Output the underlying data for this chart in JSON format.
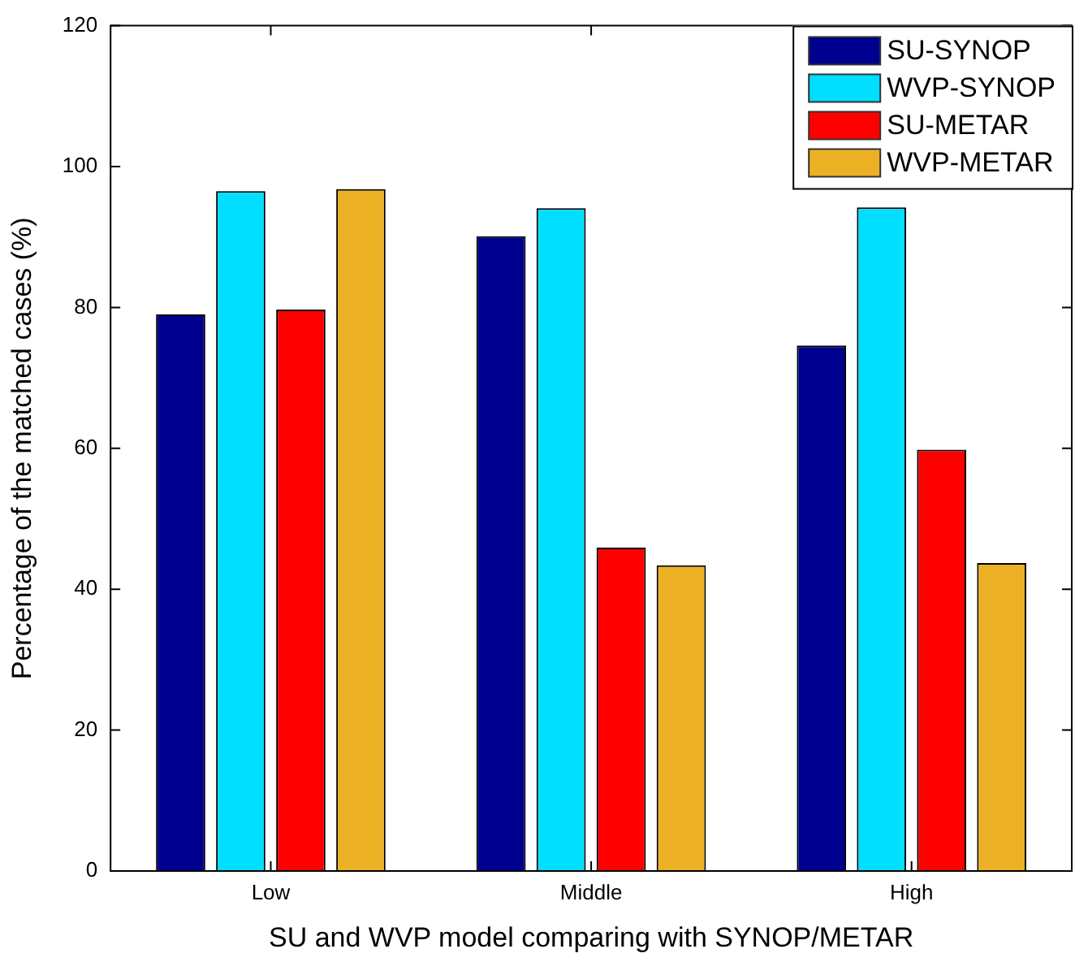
{
  "chart_data": {
    "type": "bar",
    "xlabel": "SU and WVP model comparing with SYNOP/METAR",
    "ylabel": "Percentage of the matched cases (%)",
    "categories": [
      "Low",
      "Middle",
      "High"
    ],
    "series": [
      {
        "name": "SU-SYNOP",
        "color": "#00008f",
        "values": [
          79.0,
          90.1,
          74.6
        ]
      },
      {
        "name": "WVP-SYNOP",
        "color": "#00dfff",
        "values": [
          96.5,
          94.1,
          94.2
        ]
      },
      {
        "name": "SU-METAR",
        "color": "#ff0000",
        "values": [
          79.7,
          45.9,
          59.8
        ]
      },
      {
        "name": "WVP-METAR",
        "color": "#ebb024",
        "values": [
          96.8,
          43.4,
          43.7
        ]
      }
    ],
    "ylim": [
      0,
      120
    ],
    "yticks": [
      0,
      20,
      40,
      60,
      80,
      100,
      120
    ],
    "grid": false,
    "legend": "top right"
  }
}
